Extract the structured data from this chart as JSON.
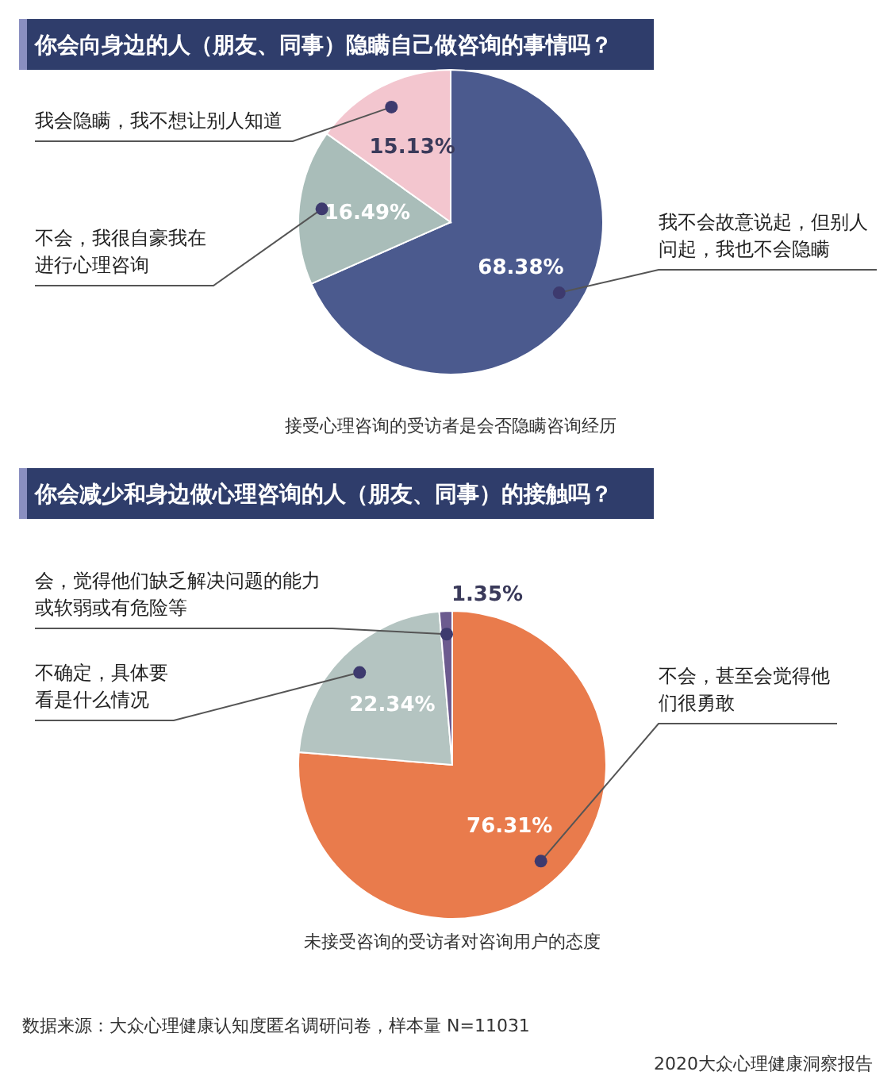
{
  "chart_data": [
    {
      "type": "pie",
      "title": "你会向身边的人（朋友、同事）隐瞒自己做咨询的事情吗？",
      "categories": [
        "我不会故意说起，但别人问起，我也不会隐瞒",
        "不会，我很自豪我在进行心理咨询",
        "我会隐瞒，我不想让别人知道"
      ],
      "values": [
        68.38,
        16.49,
        15.13
      ],
      "colors": [
        "#4b5a8e",
        "#a9bdb9",
        "#f3c6cf"
      ],
      "value_labels": [
        "68.38%",
        "16.49%",
        "15.13%"
      ],
      "annotations": [
        "接受心理咨询的受访者是会否隐瞒咨询经历"
      ]
    },
    {
      "type": "pie",
      "title": "你会减少和身边做心理咨询的人（朋友、同事）的接触吗？",
      "categories": [
        "不会，甚至会觉得他们很勇敢",
        "不确定，具体要看是什么情况",
        "会，觉得他们缺乏解决问题的能力或软弱或有危险等"
      ],
      "values": [
        76.31,
        22.34,
        1.35
      ],
      "colors": [
        "#e97b4c",
        "#b4c4c1",
        "#6c5b8f"
      ],
      "value_labels": [
        "76.31%",
        "22.34%",
        "1.35%"
      ],
      "annotations": [
        "未接受咨询的受访者对咨询用户的态度",
        "数据来源：大众心理健康认知度匿名调研问卷，样本量 N=11031",
        "2020大众心理健康洞察报告"
      ]
    }
  ]
}
